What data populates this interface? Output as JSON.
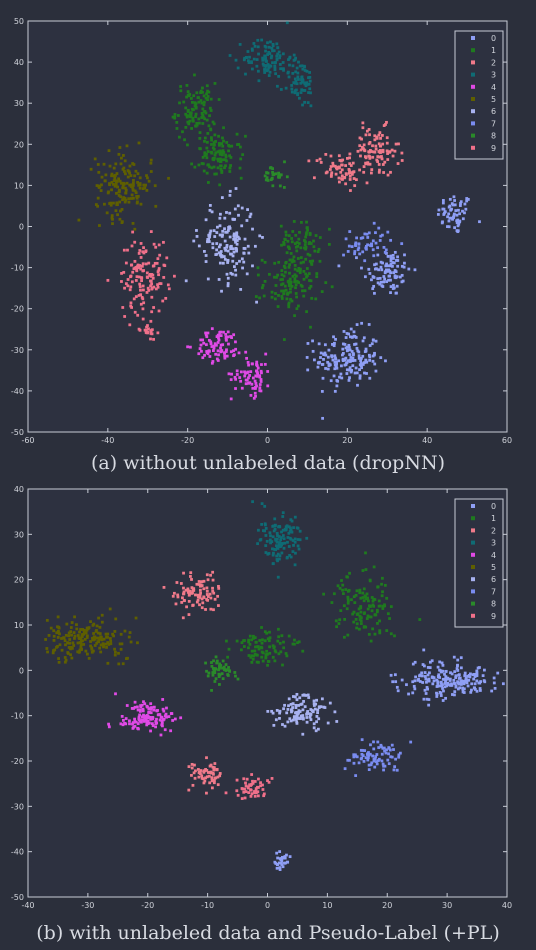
{
  "captions": {
    "a": "(a) without unlabeled data (dropNN)",
    "b": "(b) with unlabeled data and Pseudo-Label (+PL)"
  },
  "legend_colors": {
    "0": "#8f9ff5",
    "1": "#1f7a1f",
    "2": "#f07a8a",
    "3": "#0f6b74",
    "4": "#e04ae6",
    "5": "#5f5f00",
    "6": "#a8b2f0",
    "7": "#7a8cf0",
    "8": "#2a8a2a",
    "9": "#f0708a"
  },
  "chart_data": [
    {
      "type": "scatter",
      "title": "",
      "xlabel": "",
      "ylabel": "",
      "xlim": [
        -60,
        60
      ],
      "ylim": [
        -50,
        50
      ],
      "xticks": [
        -60,
        -40,
        -20,
        0,
        20,
        40,
        60
      ],
      "yticks": [
        -50,
        -40,
        -30,
        -20,
        -10,
        0,
        10,
        20,
        30,
        40,
        50
      ],
      "grid": false,
      "legend": "top-right",
      "legend_labels": [
        "0",
        "1",
        "2",
        "3",
        "4",
        "5",
        "6",
        "7",
        "8",
        "9"
      ],
      "series": [
        {
          "name": "0",
          "color": "#8f9ff5",
          "clusters": [
            {
              "cx": 47,
              "cy": 3,
              "sx": 2.2,
              "sy": 2.5,
              "n": 60
            },
            {
              "cx": 30,
              "cy": -11,
              "sx": 3,
              "sy": 3,
              "n": 90
            },
            {
              "cx": 20,
              "cy": -32,
              "sx": 4,
              "sy": 3.5,
              "n": 170
            }
          ]
        },
        {
          "name": "1",
          "color": "#1f7a1f",
          "clusters": [
            {
              "cx": -18,
              "cy": 28,
              "sx": 2.5,
              "sy": 3.5,
              "n": 110
            },
            {
              "cx": -12,
              "cy": 17,
              "sx": 3,
              "sy": 2.5,
              "n": 100
            },
            {
              "cx": 8,
              "cy": -4,
              "sx": 2.5,
              "sy": 2.5,
              "n": 70
            },
            {
              "cx": 6,
              "cy": -14,
              "sx": 3.5,
              "sy": 3.5,
              "n": 120
            }
          ]
        },
        {
          "name": "2",
          "color": "#f07a8a",
          "clusters": [
            {
              "cx": 27,
              "cy": 18,
              "sx": 3,
              "sy": 3,
              "n": 100
            },
            {
              "cx": 18,
              "cy": 14,
              "sx": 3,
              "sy": 2,
              "n": 60
            }
          ]
        },
        {
          "name": "3",
          "color": "#0f6b74",
          "clusters": [
            {
              "cx": 0,
              "cy": 41,
              "sx": 3,
              "sy": 2.5,
              "n": 100
            },
            {
              "cx": 8,
              "cy": 35,
              "sx": 2,
              "sy": 3,
              "n": 70
            }
          ]
        },
        {
          "name": "4",
          "color": "#e04ae6",
          "clusters": [
            {
              "cx": -12,
              "cy": -29,
              "sx": 3,
              "sy": 2,
              "n": 80
            },
            {
              "cx": -4,
              "cy": -36,
              "sx": 2.5,
              "sy": 2.5,
              "n": 70
            }
          ]
        },
        {
          "name": "5",
          "color": "#5f5f00",
          "clusters": [
            {
              "cx": -36,
              "cy": 10,
              "sx": 3.5,
              "sy": 4,
              "n": 160
            }
          ]
        },
        {
          "name": "6",
          "color": "#a8b2f0",
          "clusters": [
            {
              "cx": -10,
              "cy": -4,
              "sx": 3.5,
              "sy": 5,
              "n": 150
            }
          ]
        },
        {
          "name": "7",
          "color": "#7a8cf0",
          "clusters": [
            {
              "cx": 25,
              "cy": -4,
              "sx": 3,
              "sy": 2,
              "n": 50
            }
          ]
        },
        {
          "name": "8",
          "color": "#2a8a2a",
          "clusters": [
            {
              "cx": 2,
              "cy": 12,
              "sx": 1.5,
              "sy": 1.5,
              "n": 30
            }
          ]
        },
        {
          "name": "9",
          "color": "#f0708a",
          "clusters": [
            {
              "cx": -31,
              "cy": -12,
              "sx": 3,
              "sy": 4.5,
              "n": 130
            },
            {
              "cx": -30,
              "cy": -25,
              "sx": 1,
              "sy": 1,
              "n": 20
            }
          ]
        }
      ]
    },
    {
      "type": "scatter",
      "title": "",
      "xlabel": "",
      "ylabel": "",
      "xlim": [
        -40,
        40
      ],
      "ylim": [
        -50,
        40
      ],
      "xticks": [
        -40,
        -30,
        -20,
        -10,
        0,
        10,
        20,
        30,
        40
      ],
      "yticks": [
        -50,
        -40,
        -30,
        -20,
        -10,
        0,
        10,
        20,
        30,
        40
      ],
      "grid": false,
      "legend": "top-right",
      "legend_labels": [
        "0",
        "1",
        "2",
        "3",
        "4",
        "5",
        "6",
        "7",
        "8",
        "9"
      ],
      "series": [
        {
          "name": "0",
          "color": "#8f9ff5",
          "clusters": [
            {
              "cx": 30,
              "cy": -2,
              "sx": 4,
              "sy": 2,
              "n": 200
            },
            {
              "cx": 2.5,
              "cy": -42,
              "sx": 0.7,
              "sy": 1.2,
              "n": 30
            }
          ]
        },
        {
          "name": "1",
          "color": "#1f7a1f",
          "clusters": [
            {
              "cx": 16,
              "cy": 14,
              "sx": 2.5,
              "sy": 3.5,
              "n": 130
            },
            {
              "cx": 0,
              "cy": 5,
              "sx": 2.5,
              "sy": 2,
              "n": 90
            }
          ]
        },
        {
          "name": "2",
          "color": "#f07a8a",
          "clusters": [
            {
              "cx": -12,
              "cy": 17,
              "sx": 2,
              "sy": 2,
              "n": 90
            },
            {
              "cx": -10,
              "cy": -23,
              "sx": 1.6,
              "sy": 1.4,
              "n": 60
            }
          ]
        },
        {
          "name": "3",
          "color": "#0f6b74",
          "clusters": [
            {
              "cx": 2,
              "cy": 29,
              "sx": 1.8,
              "sy": 3,
              "n": 120
            }
          ]
        },
        {
          "name": "4",
          "color": "#e04ae6",
          "clusters": [
            {
              "cx": -20,
              "cy": -10,
              "sx": 2.5,
              "sy": 1.6,
              "n": 120
            }
          ]
        },
        {
          "name": "5",
          "color": "#5f5f00",
          "clusters": [
            {
              "cx": -30,
              "cy": 7,
              "sx": 3.5,
              "sy": 2.2,
              "n": 190
            }
          ]
        },
        {
          "name": "6",
          "color": "#a8b2f0",
          "clusters": [
            {
              "cx": 6,
              "cy": -9,
              "sx": 2.3,
              "sy": 2.2,
              "n": 110
            }
          ]
        },
        {
          "name": "7",
          "color": "#7a8cf0",
          "clusters": [
            {
              "cx": 18,
              "cy": -19,
              "sx": 2.5,
              "sy": 1.5,
              "n": 80
            }
          ]
        },
        {
          "name": "8",
          "color": "#2a8a2a",
          "clusters": [
            {
              "cx": -8,
              "cy": 0,
              "sx": 1.5,
              "sy": 1.5,
              "n": 50
            }
          ]
        },
        {
          "name": "9",
          "color": "#f0708a",
          "clusters": [
            {
              "cx": -3,
              "cy": -26,
              "sx": 1.5,
              "sy": 1.3,
              "n": 50
            }
          ]
        }
      ]
    }
  ]
}
